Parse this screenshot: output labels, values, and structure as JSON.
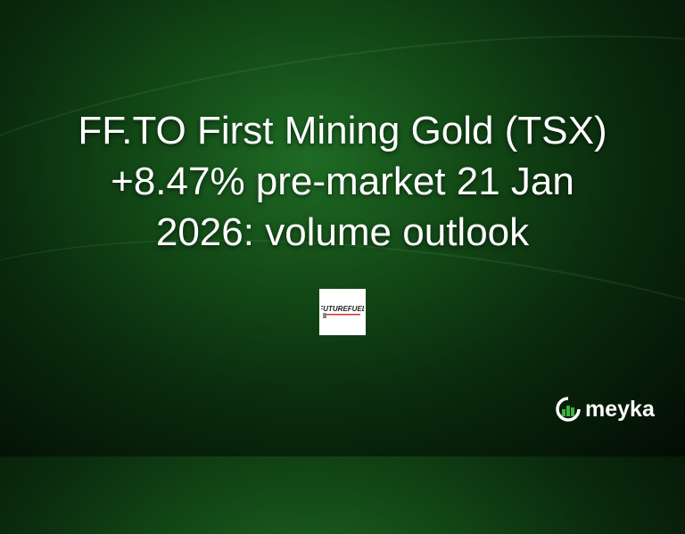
{
  "headline": {
    "line1": "FF.TO First Mining Gold (TSX)",
    "line2": "+8.47% pre-market 21 Jan",
    "line3": "2026: volume outlook"
  },
  "company_logo": {
    "text": "FutureFuel"
  },
  "brand": {
    "name": "meyka",
    "accent": "#3fae3f"
  }
}
